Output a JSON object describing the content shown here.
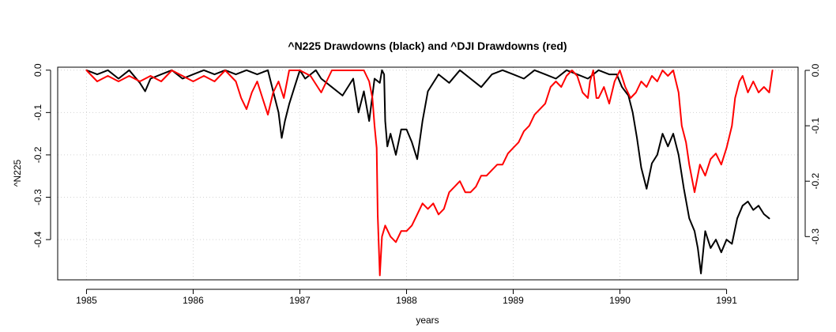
{
  "chart_data": {
    "type": "line",
    "title": "^N225 Drawdowns (black) and ^DJI Drawdowns (red)",
    "xlabel": "years",
    "ylabel": "^N225",
    "xlim": [
      1984.73,
      1991.67
    ],
    "x_ticks": [
      1985,
      1986,
      1987,
      1988,
      1989,
      1990,
      1991
    ],
    "x_tick_labels": [
      "1985",
      "1986",
      "1987",
      "1988",
      "1989",
      "1990",
      "1991"
    ],
    "y_left": {
      "ylim": [
        -0.495,
        0.007
      ],
      "ticks": [
        0.0,
        -0.1,
        -0.2,
        -0.3,
        -0.4
      ],
      "tick_labels": [
        "0.0",
        "-0.1",
        "-0.2",
        "-0.3",
        "-0.4"
      ]
    },
    "y_right": {
      "ylim": [
        -0.378,
        0.0057
      ],
      "ticks": [
        0.0,
        -0.1,
        -0.2,
        -0.3
      ],
      "tick_labels": [
        "0.0",
        "-0.1",
        "-0.2",
        "-0.3"
      ]
    },
    "grid": true,
    "series": [
      {
        "color": "#000000",
        "axis": "left",
        "x": [
          1985.0,
          1985.1,
          1985.2,
          1985.3,
          1985.4,
          1985.5,
          1985.55,
          1985.6,
          1985.7,
          1985.8,
          1985.9,
          1986.0,
          1986.1,
          1986.2,
          1986.3,
          1986.4,
          1986.5,
          1986.6,
          1986.7,
          1986.75,
          1986.8,
          1986.83,
          1986.86,
          1986.9,
          1986.95,
          1987.0,
          1987.05,
          1987.1,
          1987.15,
          1987.2,
          1987.3,
          1987.4,
          1987.5,
          1987.55,
          1987.6,
          1987.65,
          1987.7,
          1987.75,
          1987.77,
          1987.79,
          1987.8,
          1987.82,
          1987.85,
          1987.9,
          1987.95,
          1988.0,
          1988.05,
          1988.1,
          1988.15,
          1988.2,
          1988.3,
          1988.4,
          1988.5,
          1988.6,
          1988.7,
          1988.8,
          1988.9,
          1989.0,
          1989.1,
          1989.2,
          1989.3,
          1989.4,
          1989.5,
          1989.6,
          1989.7,
          1989.8,
          1989.9,
          1989.97,
          1990.02,
          1990.08,
          1990.12,
          1990.16,
          1990.2,
          1990.25,
          1990.3,
          1990.35,
          1990.4,
          1990.45,
          1990.5,
          1990.55,
          1990.6,
          1990.65,
          1990.7,
          1990.73,
          1990.76,
          1990.8,
          1990.85,
          1990.9,
          1990.95,
          1991.0,
          1991.05,
          1991.1,
          1991.15,
          1991.2,
          1991.25,
          1991.3,
          1991.35,
          1991.4
        ],
        "y": [
          0.0,
          -0.01,
          0.0,
          -0.02,
          0.0,
          -0.03,
          -0.05,
          -0.02,
          -0.01,
          0.0,
          -0.02,
          -0.01,
          0.0,
          -0.01,
          0.0,
          -0.01,
          0.0,
          -0.01,
          0.0,
          -0.05,
          -0.1,
          -0.16,
          -0.12,
          -0.08,
          -0.04,
          0.0,
          -0.02,
          -0.01,
          0.0,
          -0.02,
          -0.04,
          -0.06,
          -0.02,
          -0.1,
          -0.05,
          -0.12,
          -0.02,
          -0.03,
          0.0,
          -0.01,
          -0.12,
          -0.18,
          -0.15,
          -0.2,
          -0.14,
          -0.14,
          -0.17,
          -0.21,
          -0.12,
          -0.05,
          -0.01,
          -0.03,
          0.0,
          -0.02,
          -0.04,
          -0.01,
          0.0,
          -0.01,
          -0.02,
          0.0,
          -0.01,
          -0.02,
          0.0,
          -0.01,
          -0.02,
          0.0,
          -0.01,
          -0.01,
          -0.04,
          -0.06,
          -0.1,
          -0.16,
          -0.23,
          -0.28,
          -0.22,
          -0.2,
          -0.15,
          -0.18,
          -0.15,
          -0.2,
          -0.28,
          -0.35,
          -0.38,
          -0.42,
          -0.48,
          -0.38,
          -0.42,
          -0.4,
          -0.43,
          -0.4,
          -0.41,
          -0.35,
          -0.32,
          -0.31,
          -0.33,
          -0.32,
          -0.34,
          -0.35
        ]
      },
      {
        "color": "#ff0000",
        "axis": "right",
        "x": [
          1985.0,
          1985.1,
          1985.2,
          1985.3,
          1985.4,
          1985.5,
          1985.6,
          1985.7,
          1985.8,
          1985.9,
          1986.0,
          1986.1,
          1986.2,
          1986.3,
          1986.4,
          1986.45,
          1986.5,
          1986.55,
          1986.6,
          1986.65,
          1986.7,
          1986.75,
          1986.8,
          1986.85,
          1986.9,
          1987.0,
          1987.1,
          1987.2,
          1987.3,
          1987.4,
          1987.5,
          1987.6,
          1987.65,
          1987.68,
          1987.7,
          1987.72,
          1987.73,
          1987.75,
          1987.77,
          1987.8,
          1987.85,
          1987.9,
          1987.95,
          1988.0,
          1988.05,
          1988.1,
          1988.15,
          1988.2,
          1988.25,
          1988.3,
          1988.35,
          1988.4,
          1988.45,
          1988.5,
          1988.55,
          1988.6,
          1988.65,
          1988.7,
          1988.75,
          1988.8,
          1988.85,
          1988.9,
          1988.95,
          1989.0,
          1989.05,
          1989.1,
          1989.15,
          1989.2,
          1989.25,
          1989.3,
          1989.35,
          1989.4,
          1989.45,
          1989.5,
          1989.55,
          1989.6,
          1989.65,
          1989.7,
          1989.72,
          1989.75,
          1989.78,
          1989.8,
          1989.85,
          1989.9,
          1989.95,
          1990.0,
          1990.05,
          1990.1,
          1990.15,
          1990.2,
          1990.25,
          1990.3,
          1990.35,
          1990.4,
          1990.45,
          1990.5,
          1990.55,
          1990.58,
          1990.62,
          1990.65,
          1990.7,
          1990.75,
          1990.8,
          1990.85,
          1990.9,
          1990.95,
          1991.0,
          1991.05,
          1991.08,
          1991.12,
          1991.15,
          1991.2,
          1991.25,
          1991.3,
          1991.35,
          1991.4,
          1991.43
        ],
        "y": [
          0.0,
          -0.02,
          -0.01,
          -0.02,
          -0.01,
          -0.02,
          -0.01,
          -0.02,
          0.0,
          -0.01,
          -0.02,
          -0.01,
          -0.02,
          0.0,
          -0.02,
          -0.05,
          -0.07,
          -0.04,
          -0.02,
          -0.05,
          -0.08,
          -0.04,
          -0.02,
          -0.05,
          0.0,
          0.0,
          -0.01,
          -0.04,
          0.0,
          0.0,
          0.0,
          0.0,
          -0.02,
          -0.05,
          -0.1,
          -0.14,
          -0.26,
          -0.37,
          -0.3,
          -0.28,
          -0.3,
          -0.31,
          -0.29,
          -0.29,
          -0.28,
          -0.26,
          -0.24,
          -0.25,
          -0.24,
          -0.26,
          -0.25,
          -0.22,
          -0.21,
          -0.2,
          -0.22,
          -0.22,
          -0.21,
          -0.19,
          -0.19,
          -0.18,
          -0.17,
          -0.17,
          -0.15,
          -0.14,
          -0.13,
          -0.11,
          -0.1,
          -0.08,
          -0.07,
          -0.06,
          -0.03,
          -0.02,
          -0.03,
          -0.01,
          0.0,
          -0.01,
          -0.04,
          -0.05,
          -0.02,
          0.0,
          -0.05,
          -0.05,
          -0.03,
          -0.06,
          -0.02,
          0.0,
          -0.03,
          -0.05,
          -0.04,
          -0.02,
          -0.03,
          -0.01,
          -0.02,
          0.0,
          -0.01,
          0.0,
          -0.04,
          -0.1,
          -0.13,
          -0.17,
          -0.22,
          -0.17,
          -0.19,
          -0.16,
          -0.15,
          -0.17,
          -0.14,
          -0.1,
          -0.05,
          -0.02,
          -0.01,
          -0.04,
          -0.02,
          -0.04,
          -0.03,
          -0.04,
          0.0
        ]
      }
    ]
  }
}
